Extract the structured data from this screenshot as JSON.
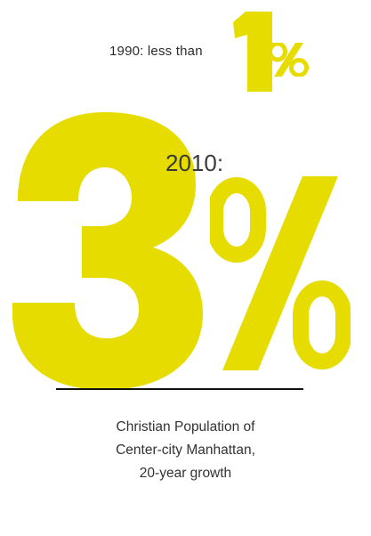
{
  "accent_color": "#e6dc00",
  "top_stat": {
    "prefix": "1990: less than",
    "digit": "1",
    "unit": "%"
  },
  "main_stat": {
    "year_label": "2010:",
    "digit": "3",
    "unit": "%"
  },
  "caption_lines": [
    "Christian Population of",
    "Center-city Manhattan,",
    "20-year growth"
  ]
}
